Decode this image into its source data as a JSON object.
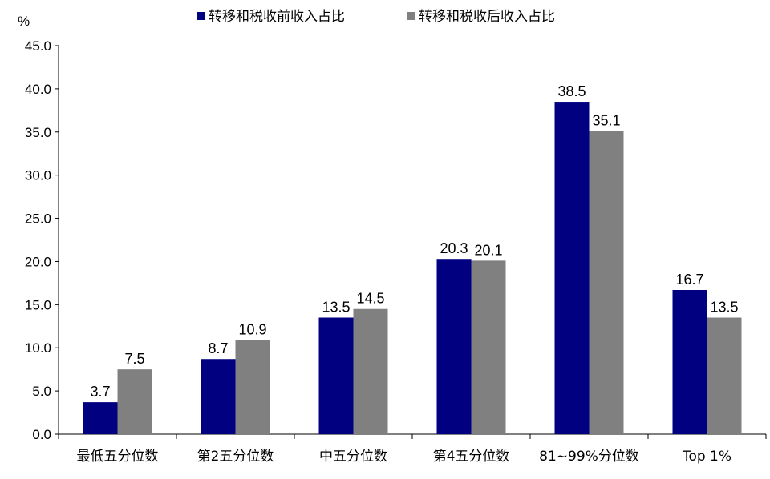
{
  "chart_data": {
    "type": "bar",
    "unit_label": "%",
    "categories": [
      "最低五分位数",
      "第2五分位数",
      "中五分位数",
      "第4五分位数",
      "81~99%分位数",
      "Top 1%"
    ],
    "series": [
      {
        "name": "转移和税收前收入占比",
        "color": "#000080",
        "values": [
          3.7,
          8.7,
          13.5,
          20.3,
          38.5,
          16.7
        ]
      },
      {
        "name": "转移和税收后收入占比",
        "color": "#808080",
        "values": [
          7.5,
          10.9,
          14.5,
          20.1,
          35.1,
          13.5
        ]
      }
    ],
    "ylim": [
      0,
      45
    ],
    "ytick_step": 5,
    "ytick_decimals": 1,
    "legend_position": "top",
    "grid": false
  }
}
